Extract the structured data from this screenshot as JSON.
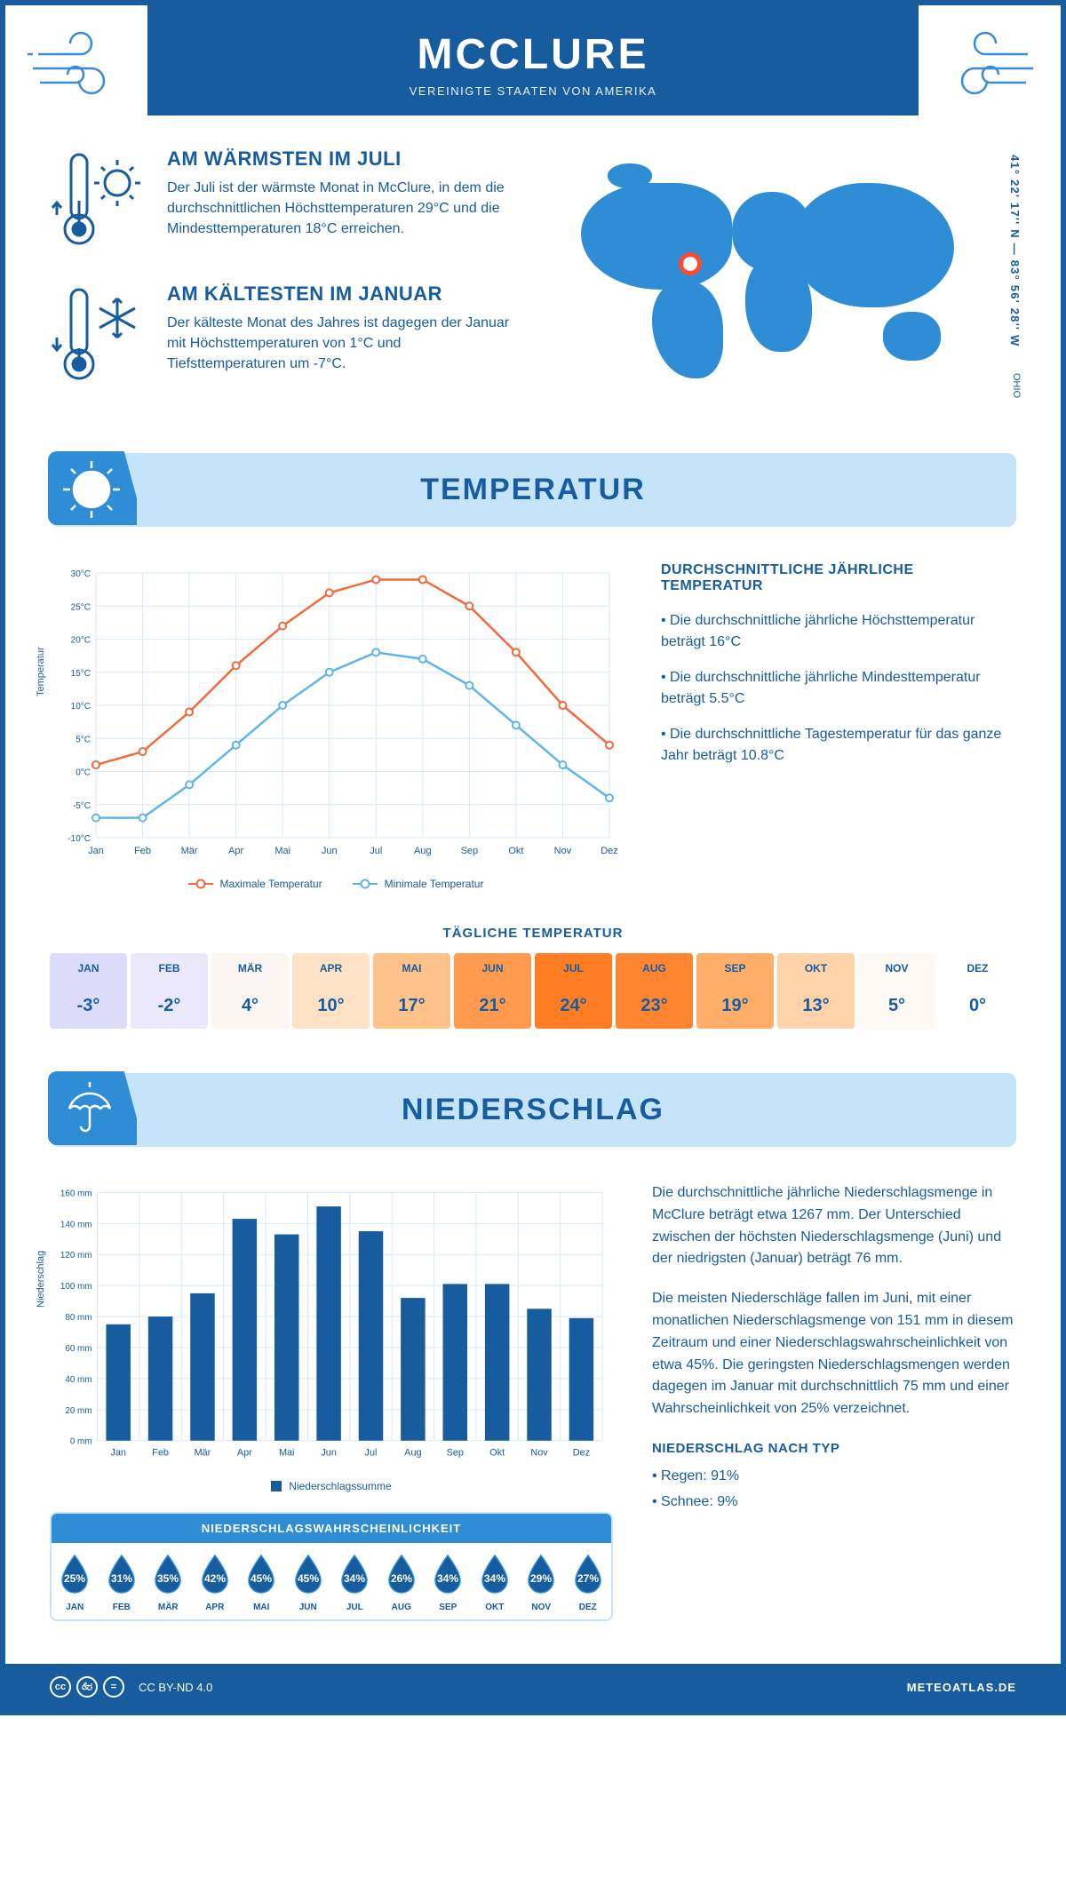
{
  "header": {
    "title": "MCCLURE",
    "subtitle": "VEREINIGTE STAATEN VON AMERIKA"
  },
  "coords": "41° 22' 17'' N — 83° 56' 28'' W",
  "region": "OHIO",
  "colors": {
    "brand": "#165c9e",
    "accent": "#2f8dd6",
    "light": "#c5e3f9",
    "max_line": "#f26a3b",
    "min_line": "#5fb4ea",
    "grid": "#d7e9f7",
    "text": "#165c9e"
  },
  "highlights": [
    {
      "title": "AM WÄRMSTEN IM JULI",
      "text": "Der Juli ist der wärmste Monat in McClure, in dem die durchschnittlichen Höchsttemperaturen 29°C und die Mindesttemperaturen 18°C erreichen."
    },
    {
      "title": "AM KÄLTESTEN IM JANUAR",
      "text": "Der kälteste Monat des Jahres ist dagegen der Januar mit Höchsttemperaturen von 1°C und Tiefsttemperaturen um -7°C."
    }
  ],
  "temp_section": {
    "title": "TEMPERATUR"
  },
  "temp_chart": {
    "type": "line",
    "months": [
      "Jan",
      "Feb",
      "Mär",
      "Apr",
      "Mai",
      "Jun",
      "Jul",
      "Aug",
      "Sep",
      "Okt",
      "Nov",
      "Dez"
    ],
    "max": [
      1,
      3,
      9,
      16,
      22,
      27,
      29,
      29,
      25,
      18,
      10,
      4
    ],
    "min": [
      -7,
      -7,
      -2,
      4,
      10,
      15,
      18,
      17,
      13,
      7,
      1,
      -4
    ],
    "ylim": [
      -10,
      30
    ],
    "ytick_step": 5,
    "ylabel": "Temperatur",
    "max_label": "Maximale Temperatur",
    "min_label": "Minimale Temperatur",
    "max_color": "#f26a3b",
    "min_color": "#5fb4ea",
    "grid_color": "#d7e9f7",
    "axis_color": "#165c9e",
    "line_width": 2.5,
    "marker_size": 4
  },
  "temp_info": {
    "title": "DURCHSCHNITTLICHE JÄHRLICHE TEMPERATUR",
    "bullets": [
      "Die durchschnittliche jährliche Höchsttemperatur beträgt 16°C",
      "Die durchschnittliche jährliche Mindesttemperatur beträgt 5.5°C",
      "Die durchschnittliche Tagestemperatur für das ganze Jahr beträgt 10.8°C"
    ]
  },
  "daily": {
    "title": "TÄGLICHE TEMPERATUR",
    "months": [
      "JAN",
      "FEB",
      "MÄR",
      "APR",
      "MAI",
      "JUN",
      "JUL",
      "AUG",
      "SEP",
      "OKT",
      "NOV",
      "DEZ"
    ],
    "values": [
      "-3°",
      "-2°",
      "4°",
      "10°",
      "17°",
      "21°",
      "24°",
      "23°",
      "19°",
      "13°",
      "5°",
      "0°"
    ],
    "cell_colors": [
      "#dcdcfa",
      "#ece8fb",
      "#fbf6f1",
      "#ffe2c6",
      "#ffc28a",
      "#ff9a4e",
      "#ff7d24",
      "#ff8531",
      "#ffae6a",
      "#ffd2a8",
      "#fdf8f2",
      "#ffffff"
    ],
    "text_colors": [
      "#165c9e",
      "#165c9e",
      "#165c9e",
      "#165c9e",
      "#165c9e",
      "#165c9e",
      "#165c9e",
      "#165c9e",
      "#165c9e",
      "#165c9e",
      "#165c9e",
      "#165c9e"
    ]
  },
  "precip_section": {
    "title": "NIEDERSCHLAG"
  },
  "precip_chart": {
    "type": "bar",
    "months": [
      "Jan",
      "Feb",
      "Mär",
      "Apr",
      "Mai",
      "Jun",
      "Jul",
      "Aug",
      "Sep",
      "Okt",
      "Nov",
      "Dez"
    ],
    "values": [
      75,
      80,
      95,
      143,
      133,
      151,
      135,
      92,
      101,
      101,
      85,
      79
    ],
    "ylim": [
      0,
      160
    ],
    "ytick_step": 20,
    "ylabel": "Niederschlag",
    "legend": "Niederschlagssumme",
    "bar_color": "#165c9e",
    "grid_color": "#d7e9f7",
    "bar_width": 0.58
  },
  "precip_text": {
    "p1": "Die durchschnittliche jährliche Niederschlagsmenge in McClure beträgt etwa 1267 mm. Der Unterschied zwischen der höchsten Niederschlagsmenge (Juni) und der niedrigsten (Januar) beträgt 76 mm.",
    "p2": "Die meisten Niederschläge fallen im Juni, mit einer monatlichen Niederschlagsmenge von 151 mm in diesem Zeitraum und einer Niederschlagswahrscheinlichkeit von etwa 45%. Die geringsten Niederschlagsmengen werden dagegen im Januar mit durchschnittlich 75 mm und einer Wahrscheinlichkeit von 25% verzeichnet.",
    "byTypeTitle": "NIEDERSCHLAG NACH TYP",
    "byType": [
      "Regen: 91%",
      "Schnee: 9%"
    ]
  },
  "prob": {
    "title": "NIEDERSCHLAGSWAHRSCHEINLICHKEIT",
    "months": [
      "JAN",
      "FEB",
      "MÄR",
      "APR",
      "MAI",
      "JUN",
      "JUL",
      "AUG",
      "SEP",
      "OKT",
      "NOV",
      "DEZ"
    ],
    "values": [
      "25%",
      "31%",
      "35%",
      "42%",
      "45%",
      "45%",
      "34%",
      "26%",
      "34%",
      "34%",
      "29%",
      "27%"
    ],
    "drop_fill": "#165c9e",
    "drop_stroke": "#2f8dd6"
  },
  "footer": {
    "license": "CC BY-ND 4.0",
    "site": "METEOATLAS.DE"
  }
}
